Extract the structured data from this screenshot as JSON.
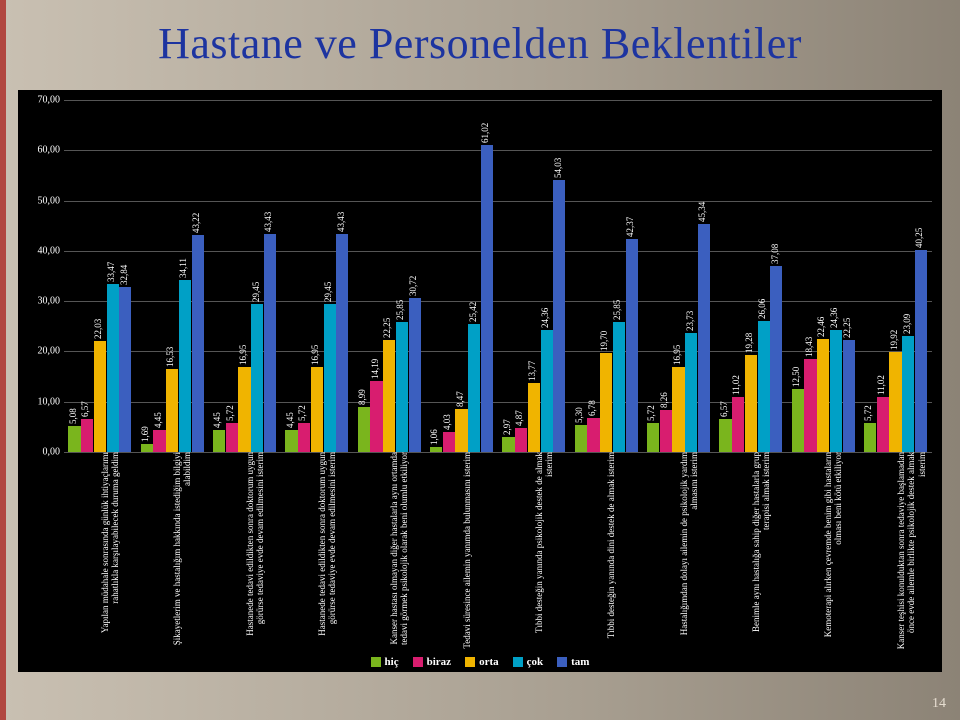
{
  "title": "Hastane ve Personelden Beklentiler",
  "page_number": "14",
  "chart": {
    "type": "bar",
    "ylim": [
      0,
      70
    ],
    "ytick_step": 10,
    "background": "#000000",
    "grid_color": "#555555",
    "text_color": "#ffffff",
    "value_fontsize": 9,
    "label_fontsize": 9,
    "series": [
      {
        "name": "hiç",
        "color": "#7ab51d"
      },
      {
        "name": "biraz",
        "color": "#d81d6f"
      },
      {
        "name": "orta",
        "color": "#f0b400"
      },
      {
        "name": "çok",
        "color": "#00a0c6"
      },
      {
        "name": "tam",
        "color": "#3b5fbf"
      }
    ],
    "categories": [
      {
        "label": "Yapılan müdahale sonrasında günlük ihtiyaçlarımı rahatlıkla karşılayabilecek duruma geldim",
        "values": [
          "5,08",
          "6,57",
          "22,03",
          "33,47",
          "32,84"
        ]
      },
      {
        "label": "Şikayetlerim ve hastalığım hakkında istediğim bilgiyi alabildim",
        "values": [
          "1,69",
          "4,45",
          "16,53",
          "34,11",
          "43,22"
        ]
      },
      {
        "label": "Hastanede tedavi edildikten sonra doktorum uygun görürse tedaviye evde devam edilmesini isterim",
        "values": [
          "4,45",
          "5,72",
          "16,95",
          "29,45",
          "43,43"
        ]
      },
      {
        "label": "Hastanede tedavi edildikten sonra doktorum uygun görürse tedaviye evde devam edilmesini isterim",
        "values": [
          "4,45",
          "5,72",
          "16,95",
          "29,45",
          "43,43"
        ]
      },
      {
        "label": "Kanser hastası olmayan diğer hastalarla aynı ortamda tedavi görmek psikolojik olarak beni olumlu etkiliyor",
        "values": [
          "8,99",
          "14,19",
          "22,25",
          "25,85",
          "30,72"
        ]
      },
      {
        "label": "Tedavi süresince ailemin yanımda bulunmasını isterim",
        "values": [
          "1,06",
          "4,03",
          "8,47",
          "25,42",
          "61,02"
        ]
      },
      {
        "label": "Tıbbi desteğin yanında psikolojik destek de almak isterim",
        "values": [
          "2,97",
          "4,87",
          "13,77",
          "24,36",
          "54,03"
        ]
      },
      {
        "label": "Tıbbi desteğin yanında dini destek de almak isterim",
        "values": [
          "5,30",
          "6,78",
          "19,70",
          "25,85",
          "42,37"
        ]
      },
      {
        "label": "Hastalığımdan dolayı ailemin de psikolojik yardım almasını isterim",
        "values": [
          "5,72",
          "8,26",
          "16,95",
          "23,73",
          "45,34"
        ]
      },
      {
        "label": "Benimle aynı hastalığa sahip diğer hastalarla grup terapisi almak isterim",
        "values": [
          "6,57",
          "11,02",
          "19,28",
          "26,06",
          "37,08"
        ]
      },
      {
        "label": "Kemoterapi alırken çevremde benim gibi hastaların olması beni kötü etkiliyor",
        "values": [
          "12,50",
          "18,43",
          "22,46",
          "24,36",
          "22,25"
        ]
      },
      {
        "label": "Kanser teşhisi konulduktan sonra tedaviye başlamadan önce evde ailemle birlikte psikolojik destek almak isterim",
        "values": [
          "5,72",
          "11,02",
          "19,92",
          "23,09",
          "40,25"
        ]
      }
    ]
  },
  "legend_labels": {
    "hic": "hiç",
    "biraz": "biraz",
    "orta": "orta",
    "cok": "çok",
    "tam": "tam"
  }
}
